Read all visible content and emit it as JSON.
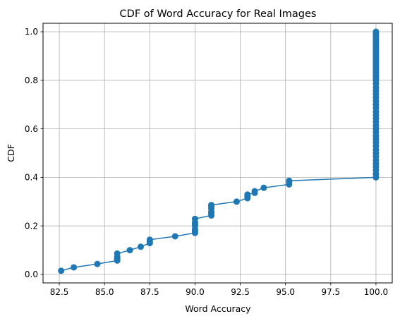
{
  "chart_data": {
    "type": "line",
    "title": "CDF of Word Accuracy for Real Images",
    "xlabel": "Word Accuracy",
    "ylabel": "CDF",
    "xlim": [
      81.6,
      100.9
    ],
    "ylim": [
      -0.035,
      1.035
    ],
    "xticks": [
      82.5,
      85.0,
      87.5,
      90.0,
      92.5,
      95.0,
      97.5,
      100.0
    ],
    "xtick_labels": [
      "82.5",
      "85.0",
      "87.5",
      "90.0",
      "92.5",
      "95.0",
      "97.5",
      "100.0"
    ],
    "yticks": [
      0.0,
      0.2,
      0.4,
      0.6,
      0.8,
      1.0
    ],
    "ytick_labels": [
      "0.0",
      "0.2",
      "0.4",
      "0.6",
      "0.8",
      "1.0"
    ],
    "grid": true,
    "markers": "circle",
    "color": "#1f77b4",
    "series": [
      {
        "x": [
          82.6,
          83.3,
          84.6,
          85.7,
          85.7,
          85.7,
          85.7,
          86.4,
          87.0,
          87.5,
          87.5,
          87.5,
          88.9,
          90.0,
          90.0,
          90.0,
          90.0,
          90.0,
          90.0,
          90.0,
          90.9,
          90.9,
          90.9,
          90.9,
          90.9,
          90.9,
          92.3,
          92.9,
          92.9,
          92.9,
          93.3,
          93.3,
          93.8,
          95.2,
          95.2,
          95.2,
          100.0,
          100.0,
          100.0,
          100.0,
          100.0,
          100.0,
          100.0,
          100.0,
          100.0,
          100.0,
          100.0,
          100.0,
          100.0,
          100.0,
          100.0,
          100.0,
          100.0,
          100.0,
          100.0,
          100.0,
          100.0,
          100.0,
          100.0,
          100.0,
          100.0,
          100.0,
          100.0,
          100.0,
          100.0,
          100.0,
          100.0,
          100.0,
          100.0,
          100.0,
          100.0,
          100.0,
          100.0,
          100.0,
          100.0,
          100.0,
          100.0,
          100.0,
          100.0,
          100.0,
          100.0,
          100.0,
          100.0,
          100.0,
          100.0,
          100.0,
          100.0,
          100.0,
          100.0,
          100.0,
          100.0,
          100.0,
          100.0
        ],
        "y": [
          0.015,
          0.029,
          0.043,
          0.057,
          0.065,
          0.072,
          0.086,
          0.1,
          0.114,
          0.129,
          0.136,
          0.143,
          0.157,
          0.171,
          0.179,
          0.186,
          0.2,
          0.207,
          0.214,
          0.229,
          0.243,
          0.25,
          0.257,
          0.271,
          0.279,
          0.286,
          0.3,
          0.314,
          0.321,
          0.329,
          0.336,
          0.343,
          0.357,
          0.371,
          0.379,
          0.386,
          0.4,
          0.414,
          0.429,
          0.443,
          0.457,
          0.471,
          0.486,
          0.5,
          0.514,
          0.529,
          0.543,
          0.557,
          0.571,
          0.586,
          0.6,
          0.614,
          0.629,
          0.643,
          0.657,
          0.671,
          0.686,
          0.7,
          0.714,
          0.729,
          0.743,
          0.757,
          0.771,
          0.786,
          0.8,
          0.814,
          0.829,
          0.843,
          0.857,
          0.871,
          0.886,
          0.9,
          0.914,
          0.929,
          0.943,
          0.957,
          0.971,
          0.986,
          1.0,
          0.993,
          0.979,
          0.964,
          0.95,
          0.936,
          0.921,
          0.907,
          0.893,
          0.879,
          0.864,
          0.85,
          0.836,
          0.821,
          0.807
        ]
      }
    ]
  }
}
